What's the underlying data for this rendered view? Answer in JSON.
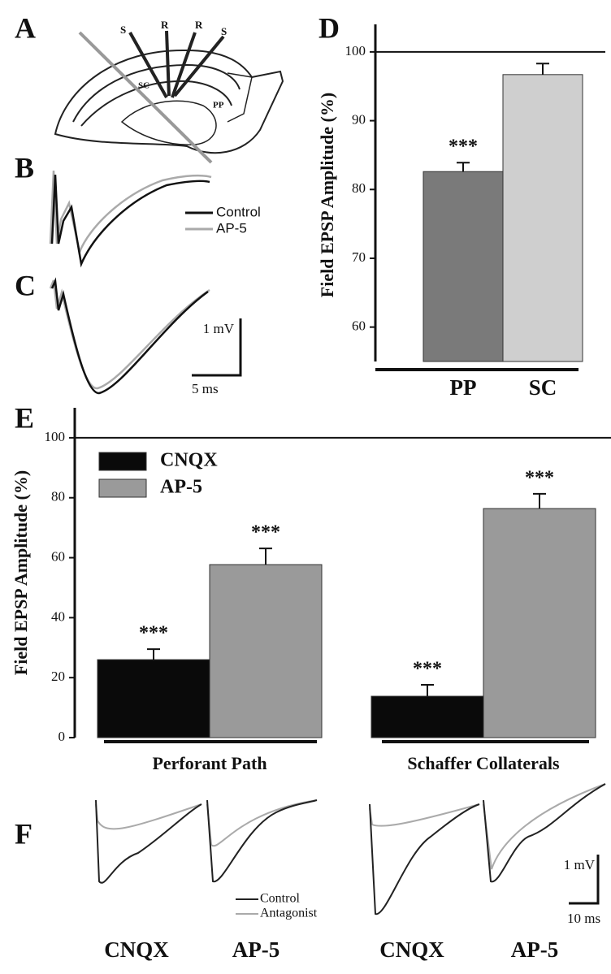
{
  "panel_labels": [
    "A",
    "B",
    "C",
    "D",
    "E",
    "F"
  ],
  "panel_a": {
    "labels": [
      "S",
      "R",
      "R",
      "S",
      "SC",
      "PP"
    ]
  },
  "panel_b": {
    "legend": [
      "Control",
      "AP-5"
    ]
  },
  "panel_c": {
    "scale": [
      "1 mV",
      "5 ms"
    ]
  },
  "panel_f": {
    "legend": [
      "Control",
      "Antagonist"
    ],
    "scale": [
      "1 mV",
      "10 ms"
    ],
    "labels": [
      "CNQX",
      "AP-5",
      "CNQX",
      "AP-5"
    ]
  },
  "chart_data": [
    {
      "type": "bar",
      "y_label": "Field  EPSP Amplitude  (%)",
      "categories": [
        "PP",
        "SC"
      ],
      "values": [
        82.6,
        96.7
      ],
      "errors": [
        1.3,
        1.6
      ],
      "colors": [
        "#7a7a7a",
        "#cfcfcf"
      ],
      "significance": [
        "***",
        null
      ],
      "ylim": [
        55,
        104
      ],
      "yticks": [
        60,
        70,
        80,
        90,
        100
      ],
      "hline": 100
    },
    {
      "type": "bar",
      "y_label": "Field  EPSP Amplitude  (%)",
      "categories": [
        "Perforant Path",
        "Schaffer Collaterals"
      ],
      "series": [
        {
          "name": "CNQX",
          "color": "#0a0a0a",
          "values": [
            26,
            13.8
          ],
          "errors": [
            3.5,
            3.8
          ],
          "significance": [
            "***",
            "***"
          ]
        },
        {
          "name": "AP-5",
          "color": "#9a9a9a",
          "values": [
            57.7,
            76.4
          ],
          "errors": [
            5.4,
            4.9
          ],
          "significance": [
            "***",
            "***"
          ]
        }
      ],
      "ylim": [
        0,
        110
      ],
      "yticks": [
        0,
        20,
        40,
        60,
        80,
        100
      ],
      "hline": 100,
      "legend": "upper-left"
    }
  ]
}
